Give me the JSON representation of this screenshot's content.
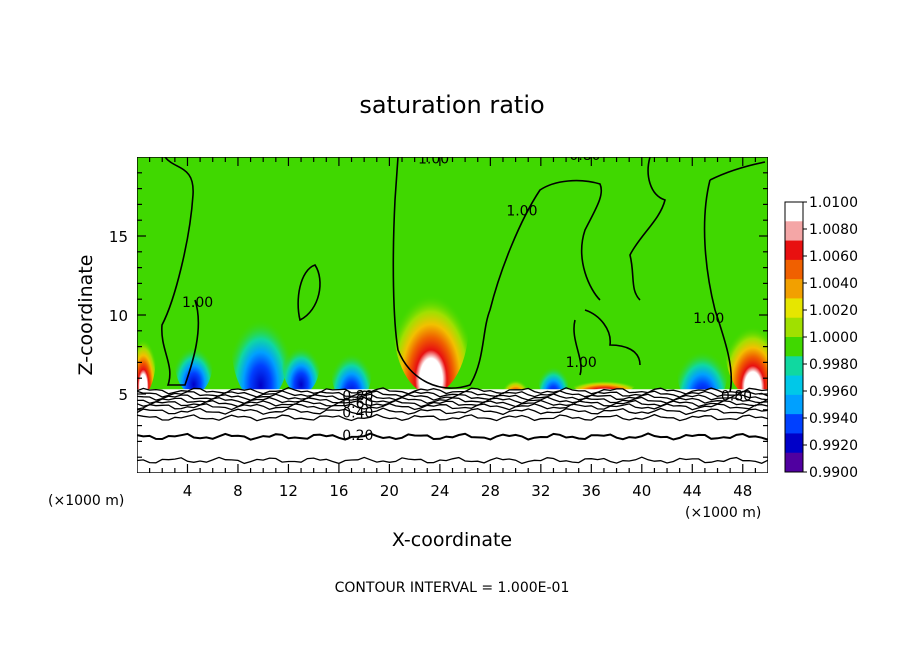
{
  "chart_data": {
    "type": "heatmap",
    "title": "saturation ratio",
    "xlabel": "X-coordinate",
    "ylabel": "Z-coordinate",
    "x_unit": "(×1000 m)",
    "z_unit": "(×1000 m)",
    "xlim": [
      0,
      50
    ],
    "ylim": [
      0,
      20
    ],
    "x_ticks": [
      4,
      8,
      12,
      16,
      20,
      24,
      28,
      32,
      36,
      40,
      44,
      48
    ],
    "y_ticks": [
      5,
      10,
      15
    ],
    "footer": "CONTOUR INTERVAL = 1.000E-01",
    "colorbar": {
      "levels": [
        "1.0100",
        "1.0080",
        "1.0060",
        "1.0040",
        "1.0020",
        "1.0000",
        "0.9980",
        "0.9960",
        "0.9940",
        "0.9920",
        "0.9900"
      ],
      "colors": [
        "#ffffff",
        "#f4a6a6",
        "#e81010",
        "#f06000",
        "#f2a000",
        "#e6e600",
        "#a0e000",
        "#40d800",
        "#10d8a0",
        "#00c8e8",
        "#00a0ff",
        "#0040ff",
        "#0000c8",
        "#5000a0"
      ]
    },
    "contour_labels": [
      {
        "text": "1.00",
        "x": 4.8,
        "z": 10.5
      },
      {
        "text": "1.00",
        "x": 23.5,
        "z": 19.6
      },
      {
        "text": "0.80",
        "x": 35.5,
        "z": 19.8
      },
      {
        "text": "1.00",
        "x": 30.5,
        "z": 16.3
      },
      {
        "text": "1.00",
        "x": 45.3,
        "z": 9.5
      },
      {
        "text": "1.00",
        "x": 35.2,
        "z": 6.7
      },
      {
        "text": "0.80",
        "x": 47.5,
        "z": 4.6
      },
      {
        "text": "0.80",
        "x": 17.5,
        "z": 4.6
      },
      {
        "text": "0.60",
        "x": 17.5,
        "z": 4.1
      },
      {
        "text": "0.40",
        "x": 17.5,
        "z": 3.5
      },
      {
        "text": "0.20",
        "x": 17.5,
        "z": 2.1
      }
    ],
    "contour_levels": [
      0.1,
      0.2,
      0.3,
      0.4,
      0.5,
      0.6,
      0.7,
      0.8,
      0.9,
      1.0
    ],
    "contour_interval": 0.1
  }
}
